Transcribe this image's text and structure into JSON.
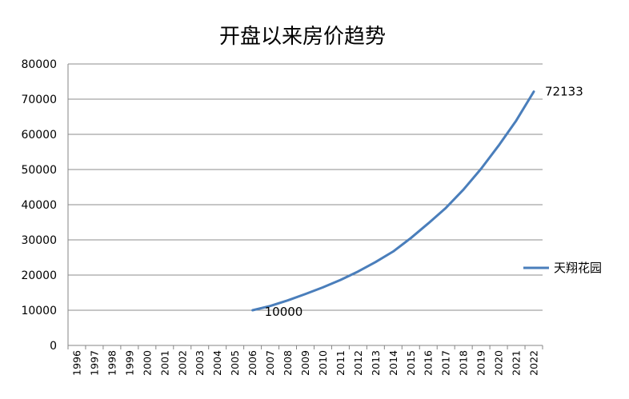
{
  "chart_data": {
    "type": "line",
    "title": "开盘以来房价趋势",
    "xlabel": "",
    "ylabel": "",
    "ylim": [
      0,
      80000
    ],
    "yticks": [
      0,
      10000,
      20000,
      30000,
      40000,
      50000,
      60000,
      70000,
      80000
    ],
    "categories": [
      "1996",
      "1997",
      "1998",
      "1999",
      "2000",
      "2001",
      "2002",
      "2003",
      "2004",
      "2005",
      "2006",
      "2007",
      "2008",
      "2009",
      "2010",
      "2011",
      "2012",
      "2013",
      "2014",
      "2015",
      "2016",
      "2017",
      "2018",
      "2019",
      "2020",
      "2021",
      "2022"
    ],
    "grid": true,
    "legend": "right",
    "series": [
      {
        "name": "天翔花园",
        "color": "#4a7ebb",
        "values": [
          null,
          null,
          null,
          null,
          null,
          null,
          null,
          null,
          null,
          null,
          10000,
          11200,
          12800,
          14600,
          16500,
          18600,
          21000,
          23700,
          26700,
          30500,
          34700,
          39100,
          44300,
          50200,
          56800,
          63900,
          72133
        ]
      }
    ],
    "data_labels": [
      {
        "category": "2006",
        "text": "10000"
      },
      {
        "category": "2022",
        "text": "72133"
      }
    ]
  }
}
